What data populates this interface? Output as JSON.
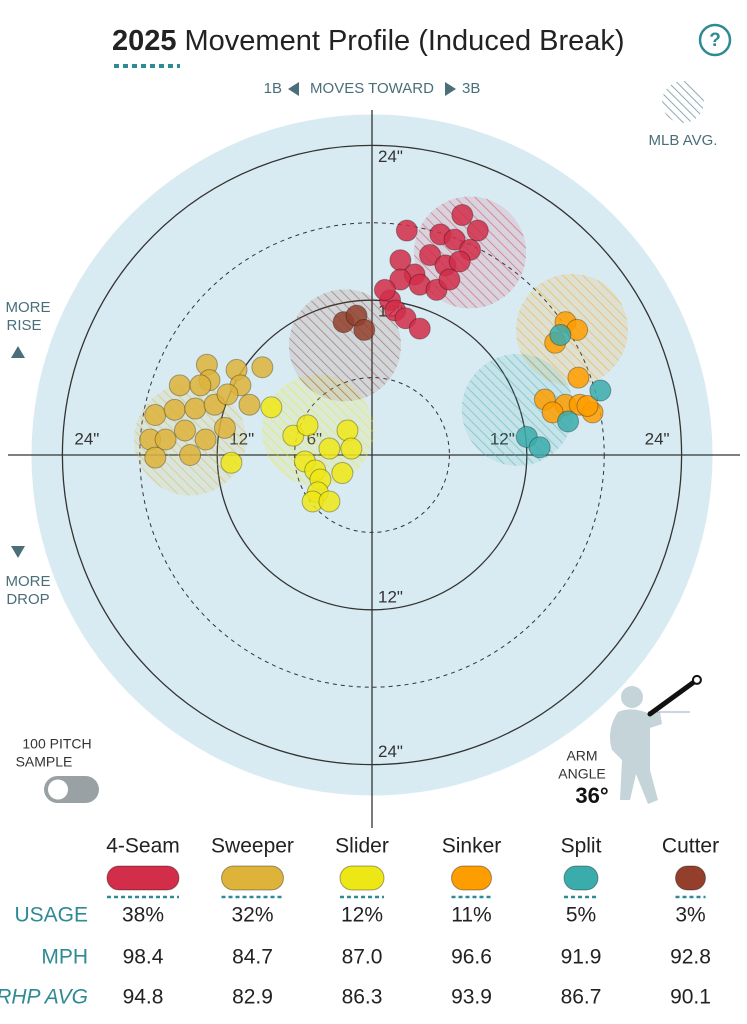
{
  "header": {
    "year": "2025",
    "title": "Movement Profile (Induced Break)"
  },
  "chart_data": {
    "type": "scatter",
    "direction": {
      "left": "1B",
      "middle": "MOVES TOWARD",
      "right": "3B"
    },
    "mlb_avg_label": "MLB AVG.",
    "rise_label": [
      "MORE",
      "RISE"
    ],
    "drop_label": [
      "MORE",
      "DROP"
    ],
    "rlim": [
      0,
      26.4
    ],
    "rings": [
      6,
      12,
      18,
      24
    ],
    "ring_labels": [
      {
        "value": 6,
        "label": "6\""
      },
      {
        "value": 12,
        "label": "12\""
      },
      {
        "value": 24,
        "label": "24\""
      }
    ],
    "series": [
      {
        "name": "4-Seam",
        "color": "#d22d49",
        "mlb_avg": [
          7.6,
          15.7
        ],
        "x": [
          2.7,
          7.0,
          8.2,
          5.3,
          6.4,
          7.6,
          4.5,
          5.7,
          6.8,
          2.2,
          3.3,
          2.2,
          1.4,
          3.7,
          5.0,
          1.8,
          2.6,
          3.7,
          1.0,
          6.0
        ],
        "y": [
          17.4,
          18.6,
          17.4,
          17.1,
          16.7,
          15.9,
          15.5,
          14.7,
          15.0,
          15.1,
          14.0,
          13.6,
          12.0,
          13.2,
          12.8,
          11.2,
          10.6,
          9.8,
          12.8,
          13.6
        ]
      },
      {
        "name": "Sweeper",
        "color": "#ddb33a",
        "mlb_avg": [
          -14.1,
          1.2
        ],
        "x": [
          -12.8,
          -10.5,
          -8.5,
          -14.9,
          -12.6,
          -10.2,
          -16.8,
          -15.3,
          -13.7,
          -12.2,
          -9.5,
          -17.2,
          -16.0,
          -14.5,
          -12.9,
          -11.4,
          -16.8,
          -14.1,
          -13.3,
          -11.2
        ],
        "y": [
          7.0,
          6.6,
          6.8,
          5.4,
          5.8,
          5.4,
          3.1,
          3.5,
          3.6,
          3.9,
          3.9,
          1.2,
          1.2,
          1.9,
          1.2,
          2.1,
          -0.2,
          0.0,
          5.4,
          4.7
        ]
      },
      {
        "name": "Slider",
        "color": "#eee716",
        "mlb_avg": [
          -4.2,
          1.9
        ],
        "x": [
          -7.8,
          -6.1,
          -5.0,
          -1.9,
          -10.9,
          -5.2,
          -3.3,
          -1.6,
          -4.4,
          -4.0,
          -2.3,
          -4.2,
          -4.6,
          -3.3
        ],
        "y": [
          3.7,
          1.5,
          2.3,
          1.9,
          -0.6,
          -0.5,
          0.5,
          0.5,
          -1.2,
          -1.9,
          -1.4,
          -2.9,
          -3.6,
          -3.6
        ]
      },
      {
        "name": "Sinker",
        "color": "#fe9d00",
        "mlb_avg": [
          15.5,
          9.7
        ],
        "x": [
          15.0,
          15.9,
          14.2,
          16.0,
          13.4,
          15.0,
          16.1,
          17.1,
          14.0,
          16.7
        ],
        "y": [
          10.3,
          9.7,
          8.7,
          6.0,
          4.3,
          3.9,
          3.9,
          3.3,
          3.3,
          3.8
        ]
      },
      {
        "name": "Split",
        "color": "#3bacac",
        "mlb_avg": [
          11.3,
          3.5
        ],
        "x": [
          14.6,
          17.7,
          15.2,
          12.0,
          13.0
        ],
        "y": [
          9.3,
          5.0,
          2.6,
          1.4,
          0.6
        ]
      },
      {
        "name": "Cutter",
        "color": "#933f2c",
        "mlb_avg": [
          -2.1,
          8.5
        ],
        "x": [
          -2.2,
          -1.2,
          -0.6
        ],
        "y": [
          10.3,
          10.8,
          9.7
        ]
      }
    ],
    "sample_toggle": [
      "100 PITCH",
      "SAMPLE"
    ],
    "arm_angle": {
      "label": [
        "ARM",
        "ANGLE"
      ],
      "value": 36,
      "value_label": "36°"
    }
  },
  "pitch_table": {
    "rows": [
      {
        "label": "USAGE",
        "cells": [
          "38%",
          "32%",
          "12%",
          "11%",
          "5%",
          "3%"
        ]
      },
      {
        "label": "MPH",
        "cells": [
          "98.4",
          "84.7",
          "87.0",
          "96.6",
          "91.9",
          "92.8"
        ]
      },
      {
        "label": "RHP AVG",
        "cells": [
          "94.8",
          "82.9",
          "86.3",
          "93.9",
          "86.7",
          "90.1"
        ]
      }
    ]
  }
}
